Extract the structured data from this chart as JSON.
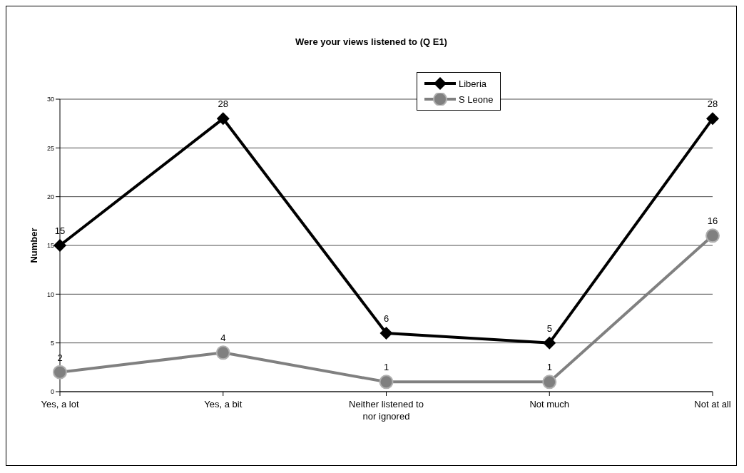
{
  "chart_data": {
    "type": "line",
    "title": "Were your views listened to (Q E1)",
    "ylabel": "Number",
    "categories": [
      "Yes, a lot",
      "Yes, a bit",
      "Neither listened to nor ignored",
      "Not much",
      "Not at all"
    ],
    "series": [
      {
        "name": "Liberia",
        "color": "#000000",
        "values": [
          15,
          28,
          6,
          5,
          28
        ],
        "marker": "diamond"
      },
      {
        "name": "S Leone",
        "color": "#808080",
        "values": [
          2,
          4,
          1,
          1,
          16
        ],
        "marker": "circle"
      }
    ],
    "ylim": [
      0,
      30
    ],
    "yticks": [
      0,
      5,
      10,
      15,
      20,
      25,
      30
    ],
    "grid": "y",
    "legend": "top right",
    "data_labels": true,
    "line_style": "solid"
  }
}
